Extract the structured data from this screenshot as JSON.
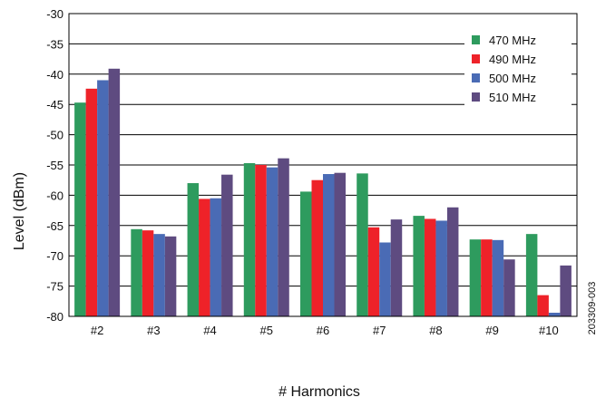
{
  "chart_data": {
    "type": "bar",
    "xlabel": "# Harmonics",
    "ylabel": "Level (dBm)",
    "ylim": [
      -80,
      -30
    ],
    "yticks": [
      -30,
      -35,
      -40,
      -45,
      -50,
      -55,
      -60,
      -65,
      -70,
      -75,
      -80
    ],
    "grid": "horizontal",
    "legend_position": "top-right",
    "categories": [
      "#2",
      "#3",
      "#4",
      "#5",
      "#6",
      "#7",
      "#8",
      "#9",
      "#10"
    ],
    "series": [
      {
        "name": "470 MHz",
        "color": "#2e9b5e",
        "values": [
          -44.7,
          -65.6,
          -58.0,
          -54.7,
          -59.4,
          -56.4,
          -63.4,
          -67.3,
          -66.4
        ]
      },
      {
        "name": "490 MHz",
        "color": "#ee2229",
        "values": [
          -42.4,
          -65.8,
          -60.6,
          -55.0,
          -57.5,
          -65.3,
          -63.9,
          -67.3,
          -76.5
        ]
      },
      {
        "name": "500 MHz",
        "color": "#4a6bb5",
        "values": [
          -41.0,
          -66.4,
          -60.5,
          -55.4,
          -56.5,
          -67.8,
          -64.2,
          -67.4,
          -79.4
        ]
      },
      {
        "name": "510 MHz",
        "color": "#5e4b80",
        "values": [
          -39.1,
          -66.8,
          -56.6,
          -53.9,
          -56.3,
          -64.0,
          -62.0,
          -70.6,
          -71.6
        ]
      }
    ],
    "annotation": "203309-003"
  }
}
